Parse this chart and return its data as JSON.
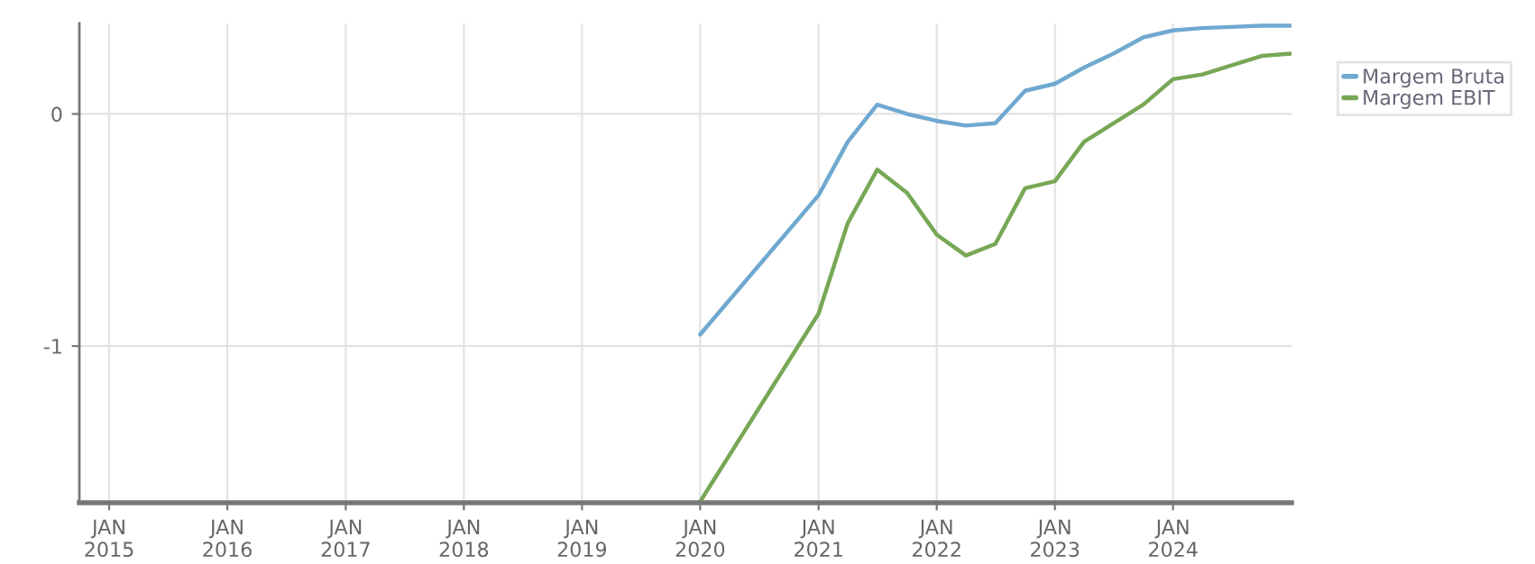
{
  "chart_data": {
    "type": "line",
    "x": [
      "2020-01",
      "2021-01",
      "2021-04",
      "2021-07",
      "2021-10",
      "2022-01",
      "2022-04",
      "2022-07",
      "2022-10",
      "2023-01",
      "2023-04",
      "2023-07",
      "2023-10",
      "2024-01",
      "2024-04",
      "2024-07",
      "2024-10",
      "2024-12-31"
    ],
    "series": [
      {
        "name": "Margem Bruta",
        "color": "#6fa8d0",
        "values": [
          -0.95,
          -0.35,
          -0.12,
          0.04,
          0.0,
          -0.03,
          -0.05,
          -0.04,
          0.1,
          0.13,
          0.2,
          0.26,
          0.33,
          0.36,
          0.37,
          0.375,
          0.38,
          0.38
        ]
      },
      {
        "name": "Margem EBIT",
        "color": "#78a756",
        "values": [
          -1.67,
          -0.86,
          -0.47,
          -0.24,
          -0.34,
          -0.52,
          -0.61,
          -0.56,
          -0.32,
          -0.29,
          -0.12,
          -0.04,
          0.04,
          0.15,
          0.17,
          0.21,
          0.25,
          0.26
        ]
      }
    ],
    "xlim": [
      "2014-10-01",
      "2025-01-01"
    ],
    "xticks": [
      {
        "value": "2015-01-01",
        "label": "JAN\n2015"
      },
      {
        "value": "2016-01-01",
        "label": "JAN\n2016"
      },
      {
        "value": "2017-01-01",
        "label": "JAN\n2017"
      },
      {
        "value": "2018-01-01",
        "label": "JAN\n2018"
      },
      {
        "value": "2019-01-01",
        "label": "JAN\n2019"
      },
      {
        "value": "2020-01-01",
        "label": "JAN\n2020"
      },
      {
        "value": "2021-01-01",
        "label": "JAN\n2021"
      },
      {
        "value": "2022-01-01",
        "label": "JAN\n2022"
      },
      {
        "value": "2023-01-01",
        "label": "JAN\n2023"
      },
      {
        "value": "2024-01-01",
        "label": "JAN\n2024"
      }
    ],
    "ylim": [
      -1.675,
      0.39
    ],
    "yticks": [
      {
        "value": -1,
        "label": "-1"
      },
      0
    ],
    "grid": true,
    "legend": "top right",
    "marker": "none",
    "line_style": "solid"
  }
}
